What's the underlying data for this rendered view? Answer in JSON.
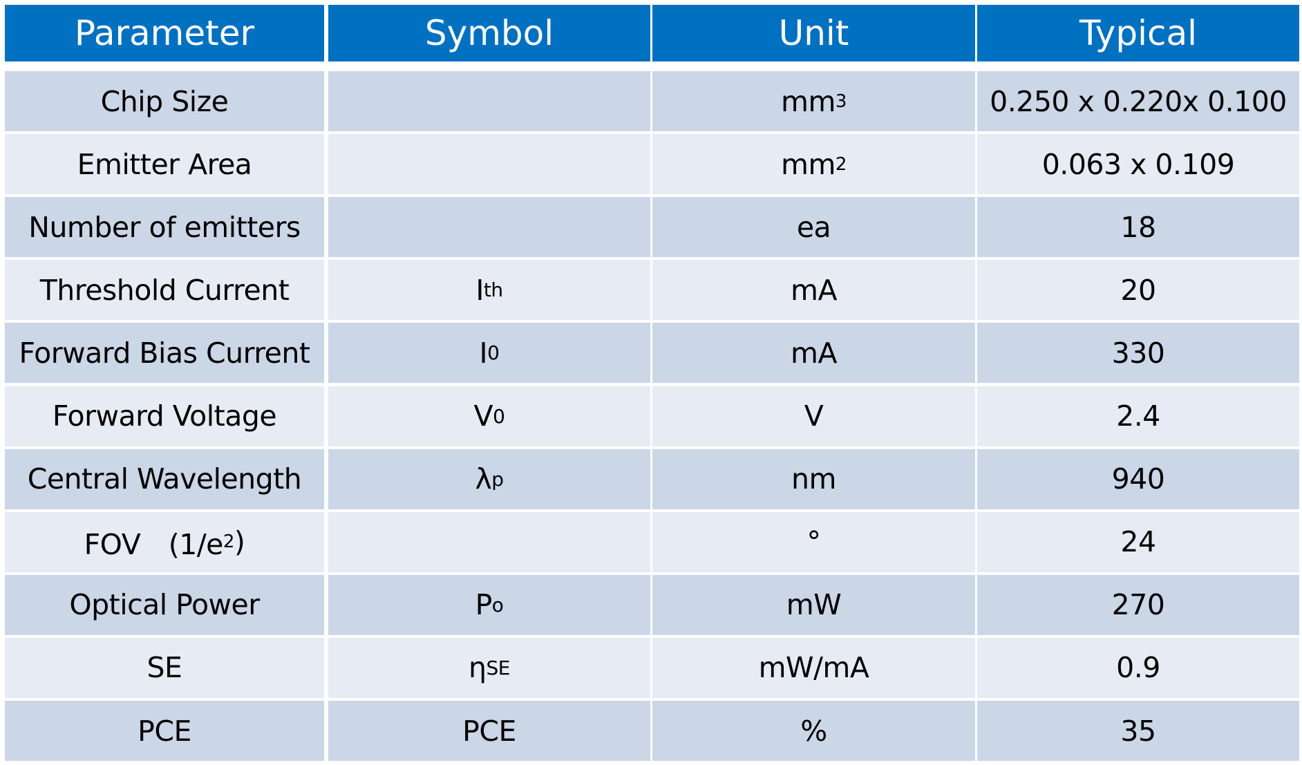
{
  "headers": [
    "Parameter",
    "Symbol",
    "Unit",
    "Typical"
  ],
  "rows": [
    {
      "parameter": {
        "text": "Chip Size"
      },
      "symbol": {
        "text": ""
      },
      "unit": {
        "text": "mm",
        "sup": "3"
      },
      "typical": {
        "text": "0.250 x 0.220x 0.100"
      }
    },
    {
      "parameter": {
        "text": "Emitter Area"
      },
      "symbol": {
        "text": ""
      },
      "unit": {
        "text": "mm",
        "sup": "2"
      },
      "typical": {
        "text": "0.063 x 0.109"
      }
    },
    {
      "parameter": {
        "text": "Number of emitters"
      },
      "symbol": {
        "text": ""
      },
      "unit": {
        "text": "ea"
      },
      "typical": {
        "text": "18"
      }
    },
    {
      "parameter": {
        "text": "Threshold Current"
      },
      "symbol": {
        "text": "I",
        "sub": "th"
      },
      "unit": {
        "text": "mA"
      },
      "typical": {
        "text": "20"
      }
    },
    {
      "parameter": {
        "text": "Forward Bias Current"
      },
      "symbol": {
        "text": "I",
        "sub": "0"
      },
      "unit": {
        "text": "mA"
      },
      "typical": {
        "text": "330"
      }
    },
    {
      "parameter": {
        "text": "Forward Voltage"
      },
      "symbol": {
        "text": "V",
        "sub": "0"
      },
      "unit": {
        "text": "V"
      },
      "typical": {
        "text": "2.4"
      }
    },
    {
      "parameter": {
        "text": "Central Wavelength"
      },
      "symbol": {
        "text": "λ",
        "sub": "p"
      },
      "unit": {
        "text": "nm"
      },
      "typical": {
        "text": "940"
      }
    },
    {
      "parameter": {
        "text": "FOV　(1/e",
        "sup": "2",
        "tail": ")"
      },
      "symbol": {
        "text": ""
      },
      "unit": {
        "text": "°"
      },
      "typical": {
        "text": "24"
      }
    },
    {
      "parameter": {
        "text": "Optical Power"
      },
      "symbol": {
        "text": "P",
        "sub": "o"
      },
      "unit": {
        "text": "mW"
      },
      "typical": {
        "text": "270"
      }
    },
    {
      "parameter": {
        "text": "SE"
      },
      "symbol": {
        "text": "η",
        "sub": "SE"
      },
      "unit": {
        "text": "mW/mA"
      },
      "typical": {
        "text": "0.9"
      }
    },
    {
      "parameter": {
        "text": "PCE"
      },
      "symbol": {
        "text": "PCE"
      },
      "unit": {
        "text": "%"
      },
      "typical": {
        "text": "35"
      }
    }
  ],
  "colors": {
    "header": "#0070c0",
    "row_odd": "#cbd6e7",
    "row_even": "#e6ebf4"
  }
}
